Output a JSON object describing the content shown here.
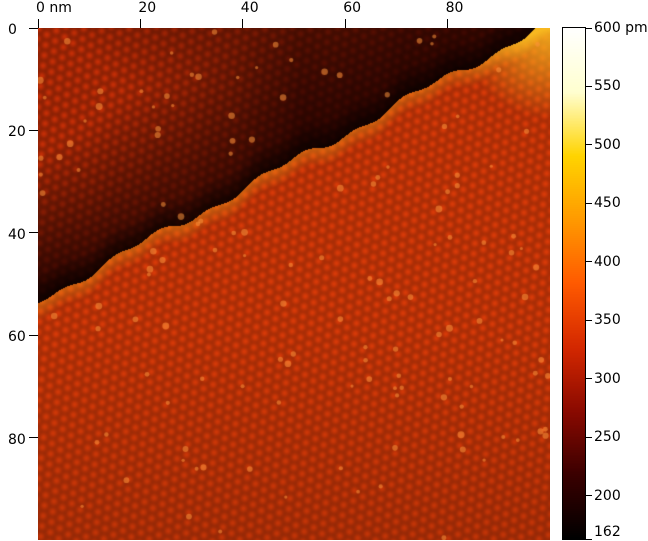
{
  "axes": {
    "x_ticks": [
      {
        "value": 0,
        "label": "0 nm"
      },
      {
        "value": 20,
        "label": "20"
      },
      {
        "value": 40,
        "label": "40"
      },
      {
        "value": 60,
        "label": "60"
      },
      {
        "value": 80,
        "label": "80"
      }
    ],
    "y_ticks": [
      {
        "value": 0,
        "label": "0"
      },
      {
        "value": 20,
        "label": "20"
      },
      {
        "value": 40,
        "label": "40"
      },
      {
        "value": 60,
        "label": "60"
      },
      {
        "value": 80,
        "label": "80"
      }
    ],
    "range_nm": [
      0,
      100
    ]
  },
  "colorbar": {
    "range_pm": [
      162,
      600
    ],
    "ticks": [
      {
        "value": 600,
        "label": "600 pm"
      },
      {
        "value": 550,
        "label": "550"
      },
      {
        "value": 500,
        "label": "500"
      },
      {
        "value": 450,
        "label": "450"
      },
      {
        "value": 400,
        "label": "400"
      },
      {
        "value": 350,
        "label": "350"
      },
      {
        "value": 300,
        "label": "300"
      },
      {
        "value": 250,
        "label": "250"
      },
      {
        "value": 200,
        "label": "200"
      },
      {
        "value": 162,
        "label": "162"
      }
    ],
    "colors": [
      "#000000",
      "#3a0000",
      "#8a0a00",
      "#d42800",
      "#ff5a00",
      "#ff9a00",
      "#ffd400",
      "#ffffd0",
      "#ffffff"
    ]
  },
  "image": {
    "colors": {
      "lower_terrace": "#d83a08",
      "upper_terrace_dark": "#300400",
      "upper_terrace_light": "#c42e06",
      "highlight": "#f8b820"
    }
  }
}
